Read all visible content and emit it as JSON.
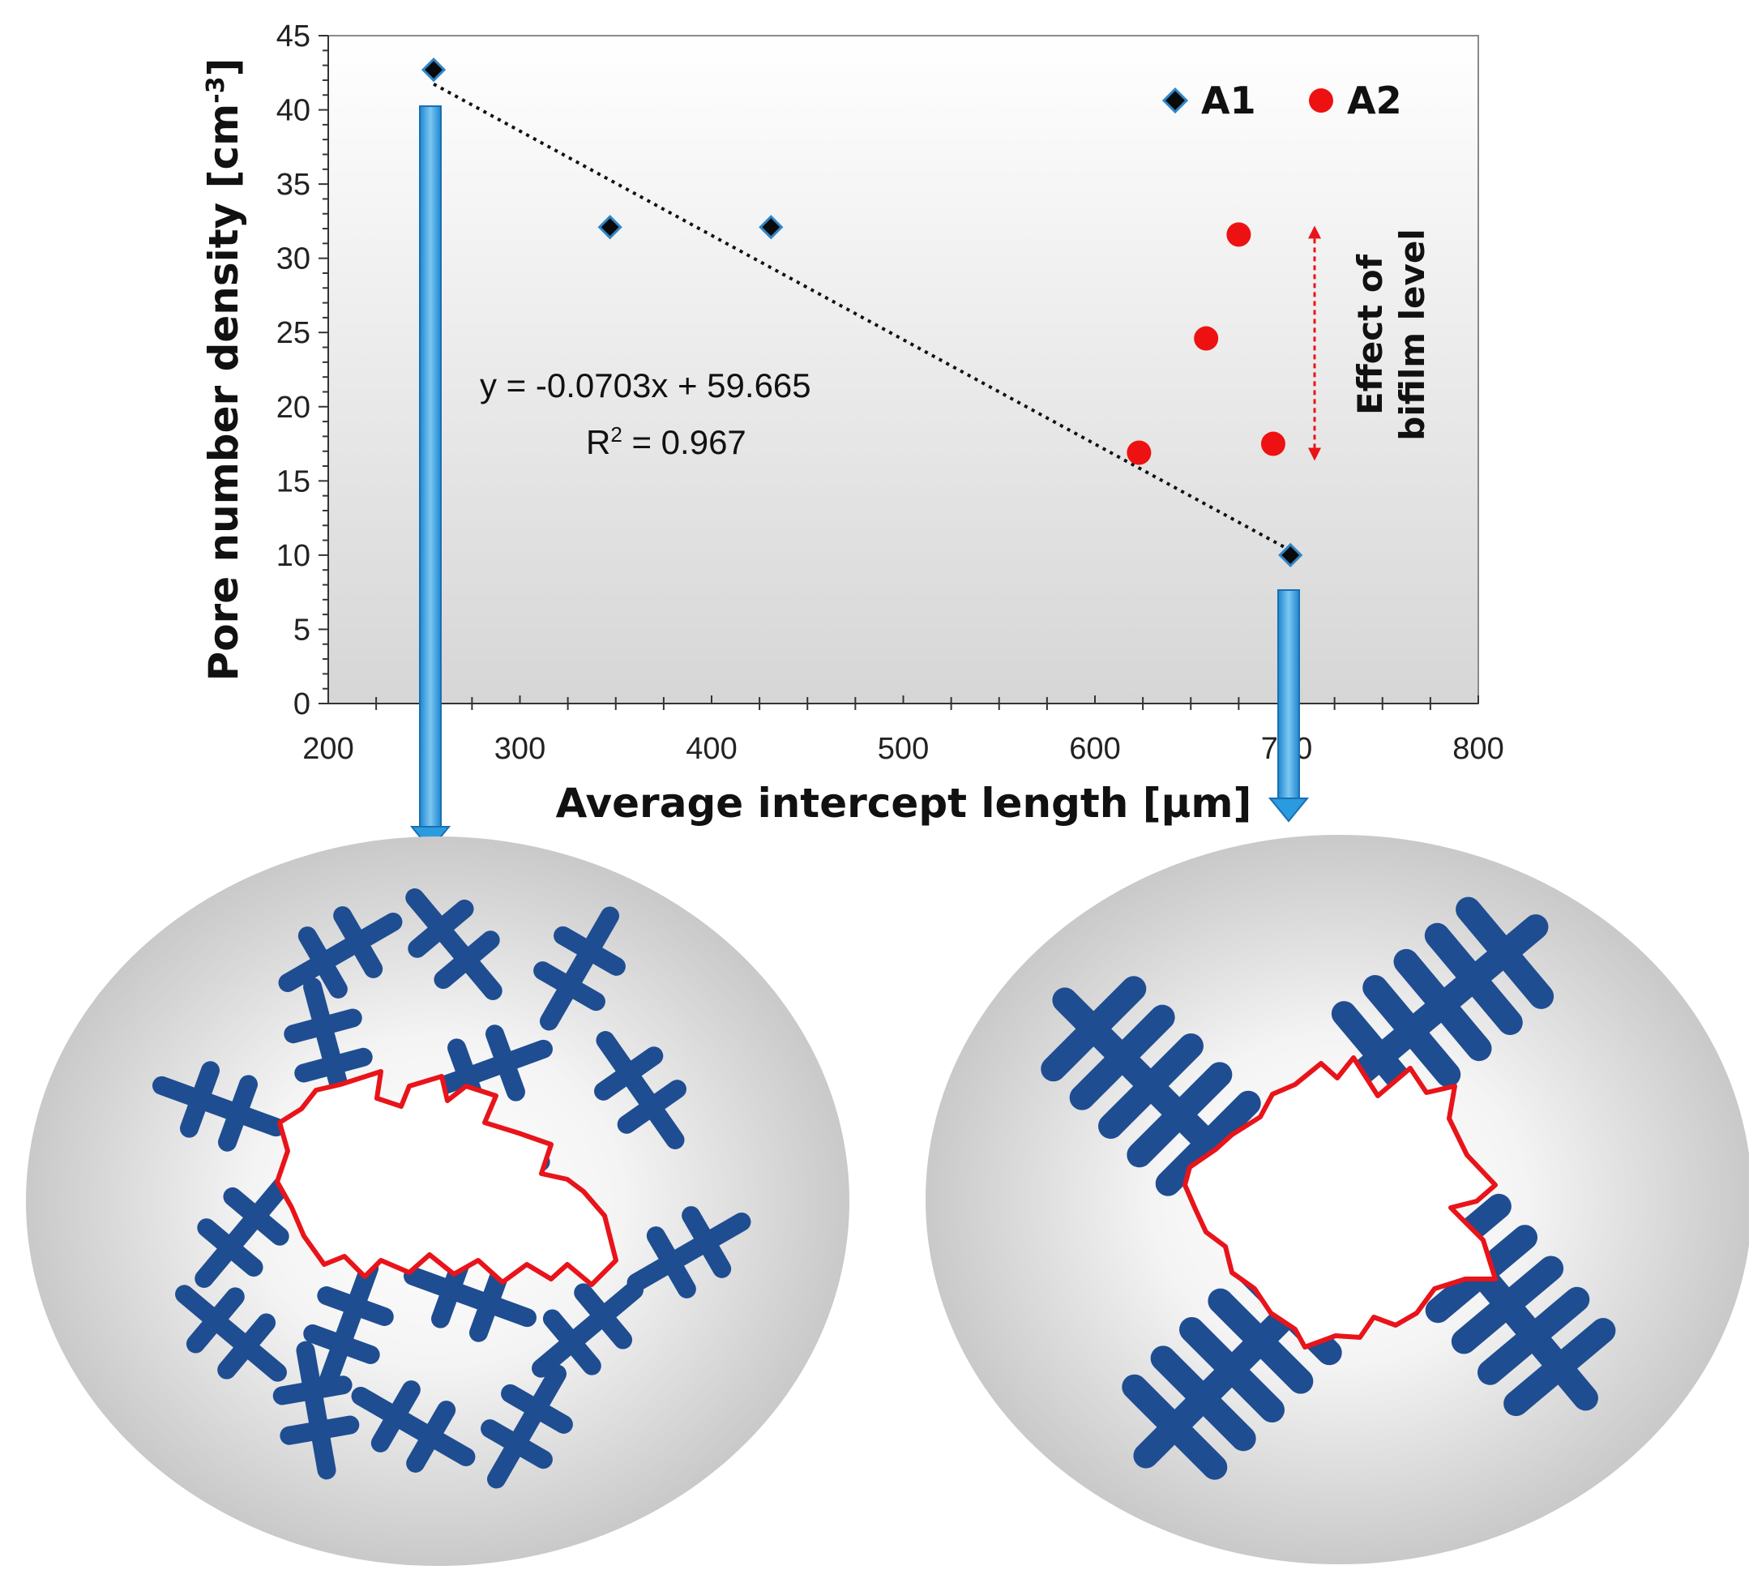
{
  "colors": {
    "a1_marker": "#0a0a0a",
    "a1_outline": "#2e86c9",
    "a2_marker": "#ee1111",
    "trendline": "#111111",
    "arrow_blue": "#2b9be0",
    "pore_outline": "#e8141a",
    "dendrite": "#3b6fb6"
  },
  "chart_data": {
    "type": "scatter",
    "xlabel": "Average intercept length [µm]",
    "ylabel": "Pore number density [cm",
    "ylabel_sup": "-3",
    "ylabel_end": "]",
    "xlim": [
      200,
      800
    ],
    "ylim": [
      0,
      45
    ],
    "x_ticks": [
      "200",
      "300",
      "400",
      "500",
      "600",
      "700",
      "800"
    ],
    "y_ticks": [
      "0",
      "5",
      "10",
      "15",
      "20",
      "25",
      "30",
      "35",
      "40",
      "45"
    ],
    "series": [
      {
        "name": "A1",
        "marker": "diamond",
        "points": [
          {
            "x": 255,
            "y": 42.7
          },
          {
            "x": 347,
            "y": 32.1
          },
          {
            "x": 431,
            "y": 32.1
          },
          {
            "x": 702,
            "y": 10.0
          }
        ]
      },
      {
        "name": "A2",
        "marker": "circle",
        "points": [
          {
            "x": 623,
            "y": 16.9
          },
          {
            "x": 658,
            "y": 24.6
          },
          {
            "x": 675,
            "y": 31.6
          },
          {
            "x": 693,
            "y": 17.5
          }
        ]
      }
    ],
    "trendline": {
      "series": "A1",
      "equation": "y = -0.0703x + 59.665",
      "r2_prefix": "R",
      "r2_sup": "2",
      "r2_suffix": " = 0.967",
      "from_x": 255,
      "to_x": 702
    },
    "annotation": {
      "line1": "Effect of",
      "line2": "bifilm level",
      "y_from": 17.5,
      "y_to": 31.6
    },
    "legend_position": "top-right",
    "grid": false
  }
}
